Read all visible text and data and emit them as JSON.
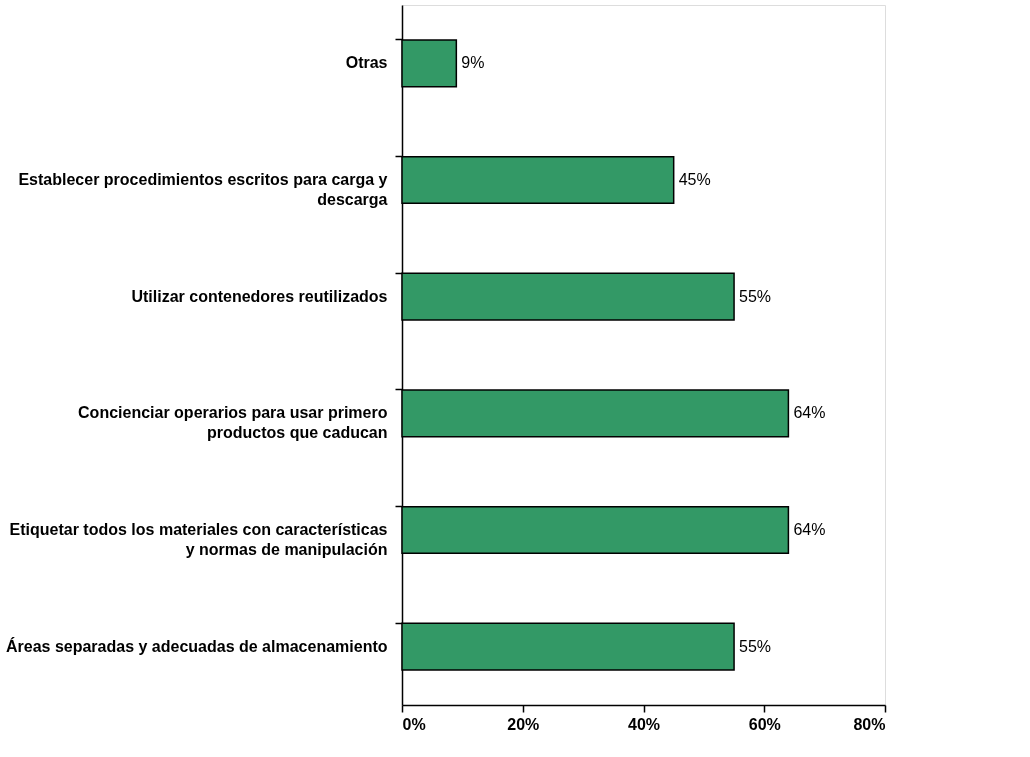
{
  "chart_data": {
    "type": "bar",
    "orientation": "horizontal",
    "categories": [
      "Otras",
      "Establecer procedimientos escritos para carga y\ndescarga",
      "Utilizar contenedores reutilizados",
      "Concienciar operarios para usar primero\nproductos que caducan",
      "Etiquetar todos los materiales con características\ny normas de manipulación",
      "Áreas separadas y adecuadas de almacenamiento"
    ],
    "values": [
      9,
      45,
      55,
      64,
      64,
      55
    ],
    "value_labels": [
      "9%",
      "45%",
      "55%",
      "64%",
      "64%",
      "55%"
    ],
    "color": "#339966",
    "xlim": [
      0,
      80
    ],
    "xticks": [
      {
        "value": 0,
        "label": "0%"
      },
      {
        "value": 20,
        "label": "20%"
      },
      {
        "value": 40,
        "label": "40%"
      },
      {
        "value": 60,
        "label": "60%"
      },
      {
        "value": 80,
        "label": "80%"
      }
    ],
    "grid": false
  }
}
